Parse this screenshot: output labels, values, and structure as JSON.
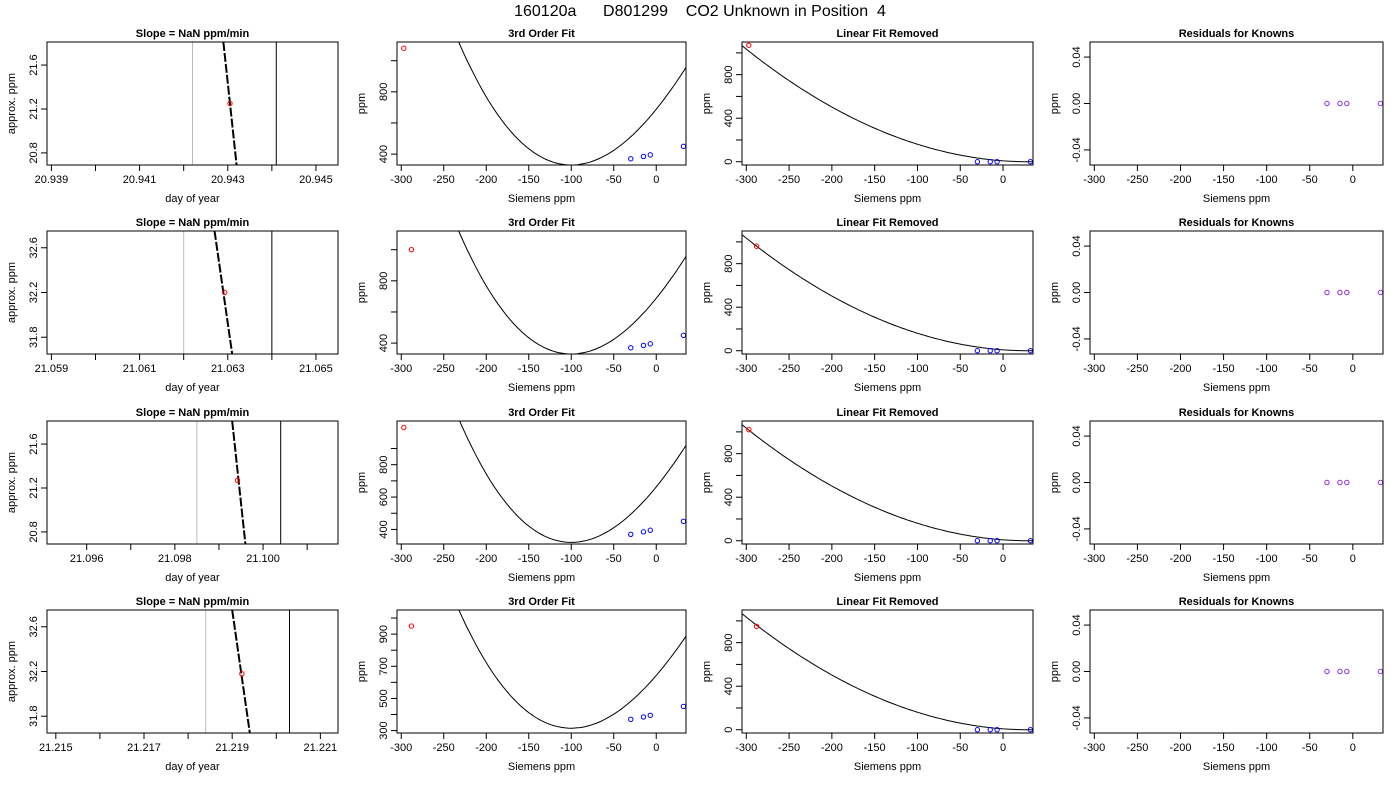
{
  "figure_title": "160120a      D801299    CO2 Unknown in Position  4",
  "colors": {
    "axis": "#000000",
    "fit": "#000000",
    "unknown": "#ff0000",
    "known": "#0000ff",
    "residual": "#8a2be2",
    "window": "#bbbbbb"
  },
  "chart_data": [
    {
      "type": "line",
      "title": "Slope =  NaN  ppm/min",
      "xlabel": "day of year",
      "ylabel": "approx. ppm",
      "xlim": [
        20.9389,
        20.9455
      ],
      "xticks": [
        "20.939",
        "20.941",
        "20.943",
        "20.945"
      ],
      "xtick_values": [
        20.939,
        20.941,
        20.943,
        20.945
      ],
      "ylim": [
        20.69,
        21.81
      ],
      "yticks": [
        "20.8",
        "21.2",
        "21.6"
      ],
      "ytick_values": [
        20.8,
        21.2,
        21.6
      ],
      "x": [
        20.9429,
        20.9432
      ],
      "y": [
        21.81,
        20.69
      ],
      "point": [
        20.94305,
        21.25
      ],
      "vlines": [
        20.9422,
        20.9441
      ]
    },
    {
      "type": "line",
      "title": "3rd Order Fit",
      "xlabel": "Siemens ppm",
      "ylabel": "ppm",
      "xlim": [
        -305,
        35
      ],
      "xticks": [
        "-300",
        "-250",
        "-200",
        "-150",
        "-100",
        "-50",
        "0"
      ],
      "xtick_values": [
        -300,
        -250,
        -200,
        -150,
        -100,
        -50,
        0
      ],
      "ylim": [
        330,
        1120
      ],
      "yticks": [
        "400",
        "800"
      ],
      "ytick_values": [
        400,
        800
      ],
      "curve": {
        "x_min": -100,
        "y_min": 330,
        "a": 0.0398,
        "b": 4e-05
      },
      "unknown": [
        [
          -297,
          1080
        ]
      ],
      "knowns": [
        [
          -30,
          370
        ],
        [
          -15,
          385
        ],
        [
          -7,
          395
        ],
        [
          32,
          450
        ]
      ]
    },
    {
      "type": "line",
      "title": "Linear Fit Removed",
      "xlabel": "Siemens ppm",
      "ylabel": "ppm",
      "xlim": [
        -305,
        35
      ],
      "xticks": [
        "-300",
        "-250",
        "-200",
        "-150",
        "-100",
        "-50",
        "0"
      ],
      "xtick_values": [
        -300,
        -250,
        -200,
        -150,
        -100,
        -50,
        0
      ],
      "ylim": [
        -30,
        1100
      ],
      "yticks": [
        "0",
        "400",
        "800"
      ],
      "ytick_values": [
        0,
        400,
        800
      ],
      "curve": {
        "x_zero": 30,
        "a": 0.0095
      },
      "unknown": [
        [
          -297,
          1070
        ]
      ],
      "knowns": [
        [
          -30,
          0
        ],
        [
          -15,
          0
        ],
        [
          -7,
          0
        ],
        [
          32,
          0
        ]
      ]
    },
    {
      "type": "scatter",
      "title": "Residuals for Knowns",
      "xlabel": "Siemens ppm",
      "ylabel": "ppm",
      "xlim": [
        -305,
        35
      ],
      "xticks": [
        "-300",
        "-250",
        "-200",
        "-150",
        "-100",
        "-50",
        "0"
      ],
      "xtick_values": [
        -300,
        -250,
        -200,
        -150,
        -100,
        -50,
        0
      ],
      "ylim": [
        -0.053,
        0.053
      ],
      "yticks": [
        "-0.04",
        "0.00",
        "0.04"
      ],
      "ytick_values": [
        -0.04,
        0.0,
        0.04
      ],
      "points": [
        [
          -30,
          0
        ],
        [
          -15,
          0
        ],
        [
          -7,
          0
        ],
        [
          32,
          0
        ]
      ]
    },
    {
      "type": "line",
      "title": "Slope =  NaN  ppm/min",
      "xlabel": "day of year",
      "ylabel": "approx. ppm",
      "xlim": [
        21.0589,
        21.0655
      ],
      "xticks": [
        "21.059",
        "21.061",
        "21.063",
        "21.065"
      ],
      "xtick_values": [
        21.059,
        21.061,
        21.063,
        21.065
      ],
      "ylim": [
        31.65,
        32.75
      ],
      "yticks": [
        "31.8",
        "32.2",
        "32.6"
      ],
      "ytick_values": [
        31.8,
        32.2,
        32.6
      ],
      "x": [
        21.0627,
        21.0631
      ],
      "y": [
        32.75,
        31.65
      ],
      "point": [
        21.06293,
        32.2
      ],
      "vlines": [
        21.062,
        21.064
      ]
    },
    {
      "type": "line",
      "title": "3rd Order Fit",
      "xlabel": "Siemens ppm",
      "ylabel": "ppm",
      "xlim": [
        -305,
        35
      ],
      "xticks": [
        "-300",
        "-250",
        "-200",
        "-150",
        "-100",
        "-50",
        "0"
      ],
      "xtick_values": [
        -300,
        -250,
        -200,
        -150,
        -100,
        -50,
        0
      ],
      "ylim": [
        330,
        1120
      ],
      "yticks": [
        "400",
        "800"
      ],
      "ytick_values": [
        400,
        800
      ],
      "curve": {
        "x_min": -100,
        "y_min": 330,
        "a": 0.0398,
        "b": 4e-05
      },
      "unknown": [
        [
          -288,
          1000
        ]
      ],
      "knowns": [
        [
          -30,
          370
        ],
        [
          -15,
          385
        ],
        [
          -7,
          395
        ],
        [
          32,
          450
        ]
      ]
    },
    {
      "type": "line",
      "title": "Linear Fit Removed",
      "xlabel": "Siemens ppm",
      "ylabel": "ppm",
      "xlim": [
        -305,
        35
      ],
      "xticks": [
        "-300",
        "-250",
        "-200",
        "-150",
        "-100",
        "-50",
        "0"
      ],
      "xtick_values": [
        -300,
        -250,
        -200,
        -150,
        -100,
        -50,
        0
      ],
      "ylim": [
        -30,
        1100
      ],
      "yticks": [
        "0",
        "400",
        "800"
      ],
      "ytick_values": [
        0,
        400,
        800
      ],
      "curve": {
        "x_zero": 30,
        "a": 0.0095
      },
      "unknown": [
        [
          -288,
          960
        ]
      ],
      "knowns": [
        [
          -30,
          0
        ],
        [
          -15,
          0
        ],
        [
          -7,
          0
        ],
        [
          32,
          0
        ]
      ]
    },
    {
      "type": "scatter",
      "title": "Residuals for Knowns",
      "xlabel": "Siemens ppm",
      "ylabel": "ppm",
      "xlim": [
        -305,
        35
      ],
      "xticks": [
        "-300",
        "-250",
        "-200",
        "-150",
        "-100",
        "-50",
        "0"
      ],
      "xtick_values": [
        -300,
        -250,
        -200,
        -150,
        -100,
        -50,
        0
      ],
      "ylim": [
        -0.053,
        0.053
      ],
      "yticks": [
        "-0.04",
        "0.00",
        "0.04"
      ],
      "ytick_values": [
        -0.04,
        0.0,
        0.04
      ],
      "points": [
        [
          -30,
          0
        ],
        [
          -15,
          0
        ],
        [
          -7,
          0
        ],
        [
          32,
          0
        ]
      ]
    },
    {
      "type": "line",
      "title": "Slope =  NaN  ppm/min",
      "xlabel": "day of year",
      "ylabel": "approx. ppm",
      "xlim": [
        21.0951,
        21.1017
      ],
      "xticks": [
        "21.096",
        "21.098",
        "21.100"
      ],
      "xtick_values": [
        21.096,
        21.098,
        21.1
      ],
      "ylim": [
        20.69,
        21.81
      ],
      "yticks": [
        "20.8",
        "21.2",
        "21.6"
      ],
      "ytick_values": [
        20.8,
        21.2,
        21.6
      ],
      "x": [
        21.0993,
        21.0996
      ],
      "y": [
        21.81,
        20.69
      ],
      "point": [
        21.09942,
        21.27
      ],
      "vlines": [
        21.0985,
        21.1004
      ]
    },
    {
      "type": "line",
      "title": "3rd Order Fit",
      "xlabel": "Siemens ppm",
      "ylabel": "ppm",
      "xlim": [
        -305,
        35
      ],
      "xticks": [
        "-300",
        "-250",
        "-200",
        "-150",
        "-100",
        "-50",
        "0"
      ],
      "xtick_values": [
        -300,
        -250,
        -200,
        -150,
        -100,
        -50,
        0
      ],
      "ylim": [
        310,
        1070
      ],
      "yticks": [
        "400",
        "600",
        "800"
      ],
      "ytick_values": [
        400,
        600,
        800
      ],
      "curve": {
        "x_min": -100,
        "y_min": 320,
        "a": 0.0383,
        "b": 4e-05
      },
      "unknown": [
        [
          -297,
          1030
        ]
      ],
      "knowns": [
        [
          -30,
          370
        ],
        [
          -15,
          385
        ],
        [
          -7,
          395
        ],
        [
          32,
          450
        ]
      ]
    },
    {
      "type": "line",
      "title": "Linear Fit Removed",
      "xlabel": "Siemens ppm",
      "ylabel": "ppm",
      "xlim": [
        -305,
        35
      ],
      "xticks": [
        "-300",
        "-250",
        "-200",
        "-150",
        "-100",
        "-50",
        "0"
      ],
      "xtick_values": [
        -300,
        -250,
        -200,
        -150,
        -100,
        -50,
        0
      ],
      "ylim": [
        -30,
        1100
      ],
      "yticks": [
        "0",
        "400",
        "800"
      ],
      "ytick_values": [
        0,
        400,
        800
      ],
      "curve": {
        "x_zero": 30,
        "a": 0.0095
      },
      "unknown": [
        [
          -297,
          1020
        ]
      ],
      "knowns": [
        [
          -30,
          0
        ],
        [
          -15,
          0
        ],
        [
          -7,
          0
        ],
        [
          32,
          0
        ]
      ]
    },
    {
      "type": "scatter",
      "title": "Residuals for Knowns",
      "xlabel": "Siemens ppm",
      "ylabel": "ppm",
      "xlim": [
        -305,
        35
      ],
      "xticks": [
        "-300",
        "-250",
        "-200",
        "-150",
        "-100",
        "-50",
        "0"
      ],
      "xtick_values": [
        -300,
        -250,
        -200,
        -150,
        -100,
        -50,
        0
      ],
      "ylim": [
        -0.053,
        0.053
      ],
      "yticks": [
        "-0.04",
        "0.00",
        "0.04"
      ],
      "ytick_values": [
        -0.04,
        0.0,
        0.04
      ],
      "points": [
        [
          -30,
          0
        ],
        [
          -15,
          0
        ],
        [
          -7,
          0
        ],
        [
          32,
          0
        ]
      ]
    },
    {
      "type": "line",
      "title": "Slope =  NaN  ppm/min",
      "xlabel": "day of year",
      "ylabel": "approx. ppm",
      "xlim": [
        21.2148,
        21.2214
      ],
      "xticks": [
        "21.215",
        "21.217",
        "21.219",
        "21.221"
      ],
      "xtick_values": [
        21.215,
        21.217,
        21.219,
        21.221
      ],
      "ylim": [
        31.65,
        32.75
      ],
      "yticks": [
        "31.8",
        "32.2",
        "32.6"
      ],
      "ytick_values": [
        31.8,
        32.2,
        32.6
      ],
      "x": [
        21.219,
        21.2194
      ],
      "y": [
        32.75,
        31.65
      ],
      "point": [
        21.21922,
        32.18
      ],
      "vlines": [
        21.2184,
        21.2203
      ]
    },
    {
      "type": "line",
      "title": "3rd Order Fit",
      "xlabel": "Siemens ppm",
      "ylabel": "ppm",
      "xlim": [
        -305,
        35
      ],
      "xticks": [
        "-300",
        "-250",
        "-200",
        "-150",
        "-100",
        "-50",
        "0"
      ],
      "xtick_values": [
        -300,
        -250,
        -200,
        -150,
        -100,
        -50,
        0
      ],
      "ylim": [
        285,
        1050
      ],
      "yticks": [
        "300",
        "500",
        "700",
        "900"
      ],
      "ytick_values": [
        300,
        500,
        700,
        900
      ],
      "curve": {
        "x_min": -100,
        "y_min": 315,
        "a": 0.0368,
        "b": 4e-05
      },
      "unknown": [
        [
          -288,
          950
        ]
      ],
      "knowns": [
        [
          -30,
          370
        ],
        [
          -15,
          385
        ],
        [
          -7,
          395
        ],
        [
          32,
          450
        ]
      ]
    },
    {
      "type": "line",
      "title": "Linear Fit Removed",
      "xlabel": "Siemens ppm",
      "ylabel": "ppm",
      "xlim": [
        -305,
        35
      ],
      "xticks": [
        "-300",
        "-250",
        "-200",
        "-150",
        "-100",
        "-50",
        "0"
      ],
      "xtick_values": [
        -300,
        -250,
        -200,
        -150,
        -100,
        -50,
        0
      ],
      "ylim": [
        -30,
        1100
      ],
      "yticks": [
        "0",
        "400",
        "800"
      ],
      "ytick_values": [
        0,
        400,
        800
      ],
      "curve": {
        "x_zero": 30,
        "a": 0.0095
      },
      "unknown": [
        [
          -288,
          950
        ]
      ],
      "knowns": [
        [
          -30,
          0
        ],
        [
          -15,
          0
        ],
        [
          -7,
          0
        ],
        [
          32,
          0
        ]
      ]
    },
    {
      "type": "scatter",
      "title": "Residuals for Knowns",
      "xlabel": "Siemens ppm",
      "ylabel": "ppm",
      "xlim": [
        -305,
        35
      ],
      "xticks": [
        "-300",
        "-250",
        "-200",
        "-150",
        "-100",
        "-50",
        "0"
      ],
      "xtick_values": [
        -300,
        -250,
        -200,
        -150,
        -100,
        -50,
        0
      ],
      "ylim": [
        -0.053,
        0.053
      ],
      "yticks": [
        "-0.04",
        "0.00",
        "0.04"
      ],
      "ytick_values": [
        -0.04,
        0.0,
        0.04
      ],
      "points": [
        [
          -30,
          0
        ],
        [
          -15,
          0
        ],
        [
          -7,
          0
        ],
        [
          32,
          0
        ]
      ]
    }
  ]
}
